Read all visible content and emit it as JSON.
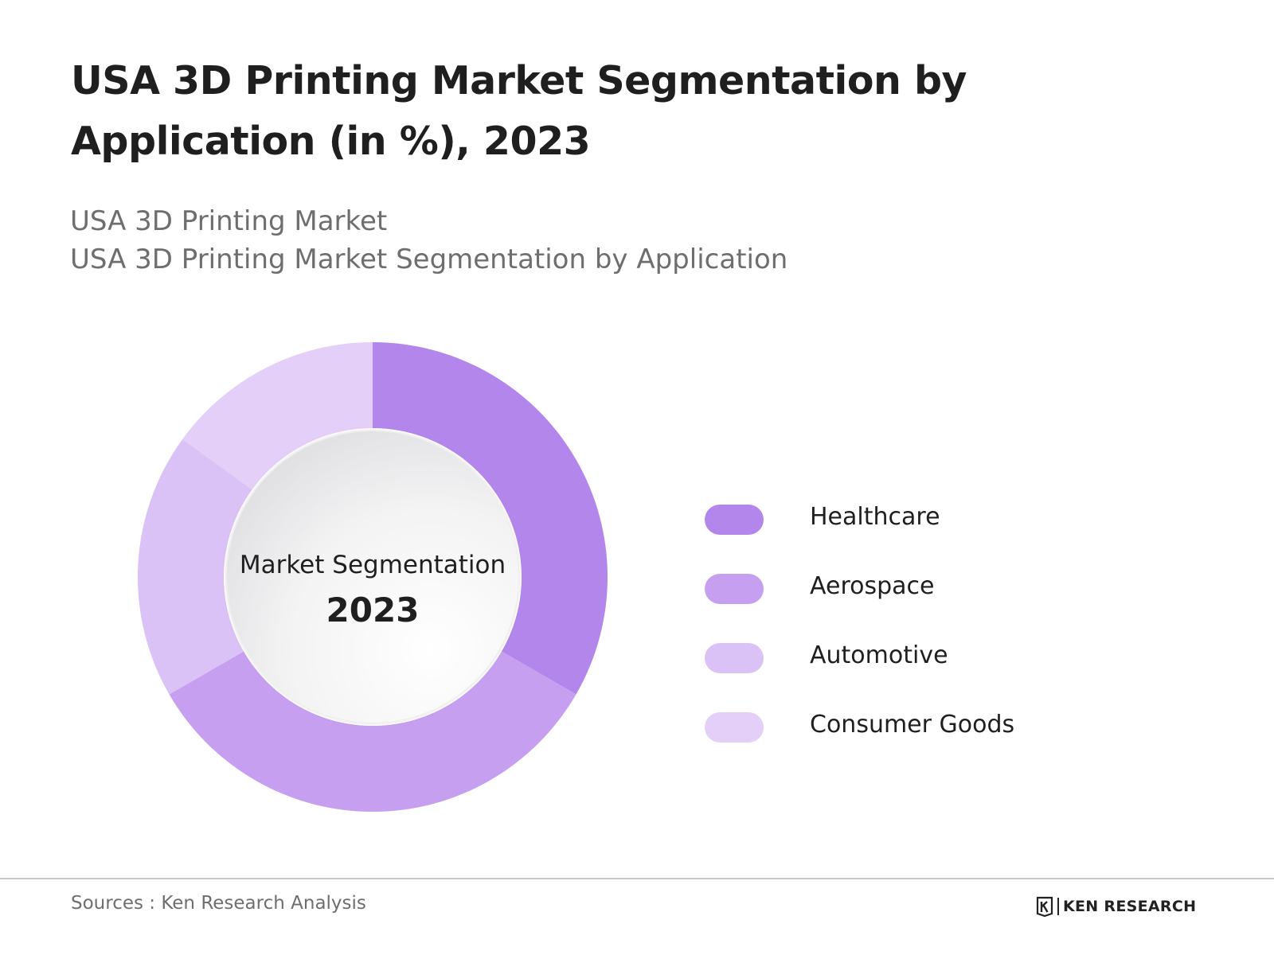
{
  "title": "USA 3D Printing Market Segmentation by Application (in %), 2023",
  "subtitles": [
    "USA 3D Printing Market",
    "USA 3D Printing Market Segmentation by Application"
  ],
  "chart_data": {
    "type": "pie",
    "style": "donut",
    "categories": [
      "Healthcare",
      "Aerospace",
      "Automotive",
      "Consumer Goods"
    ],
    "values": [
      33.3,
      33.3,
      18.3,
      15.0
    ],
    "colors": [
      "#b386ec",
      "#c79ff0",
      "#dac2f6",
      "#e4cff8"
    ],
    "center_label": "Market Segmentation",
    "center_year": "2023",
    "legend_position": "right"
  },
  "footer": {
    "source": "Sources : Ken Research Analysis",
    "logo_text": "KEN RESEARCH"
  }
}
